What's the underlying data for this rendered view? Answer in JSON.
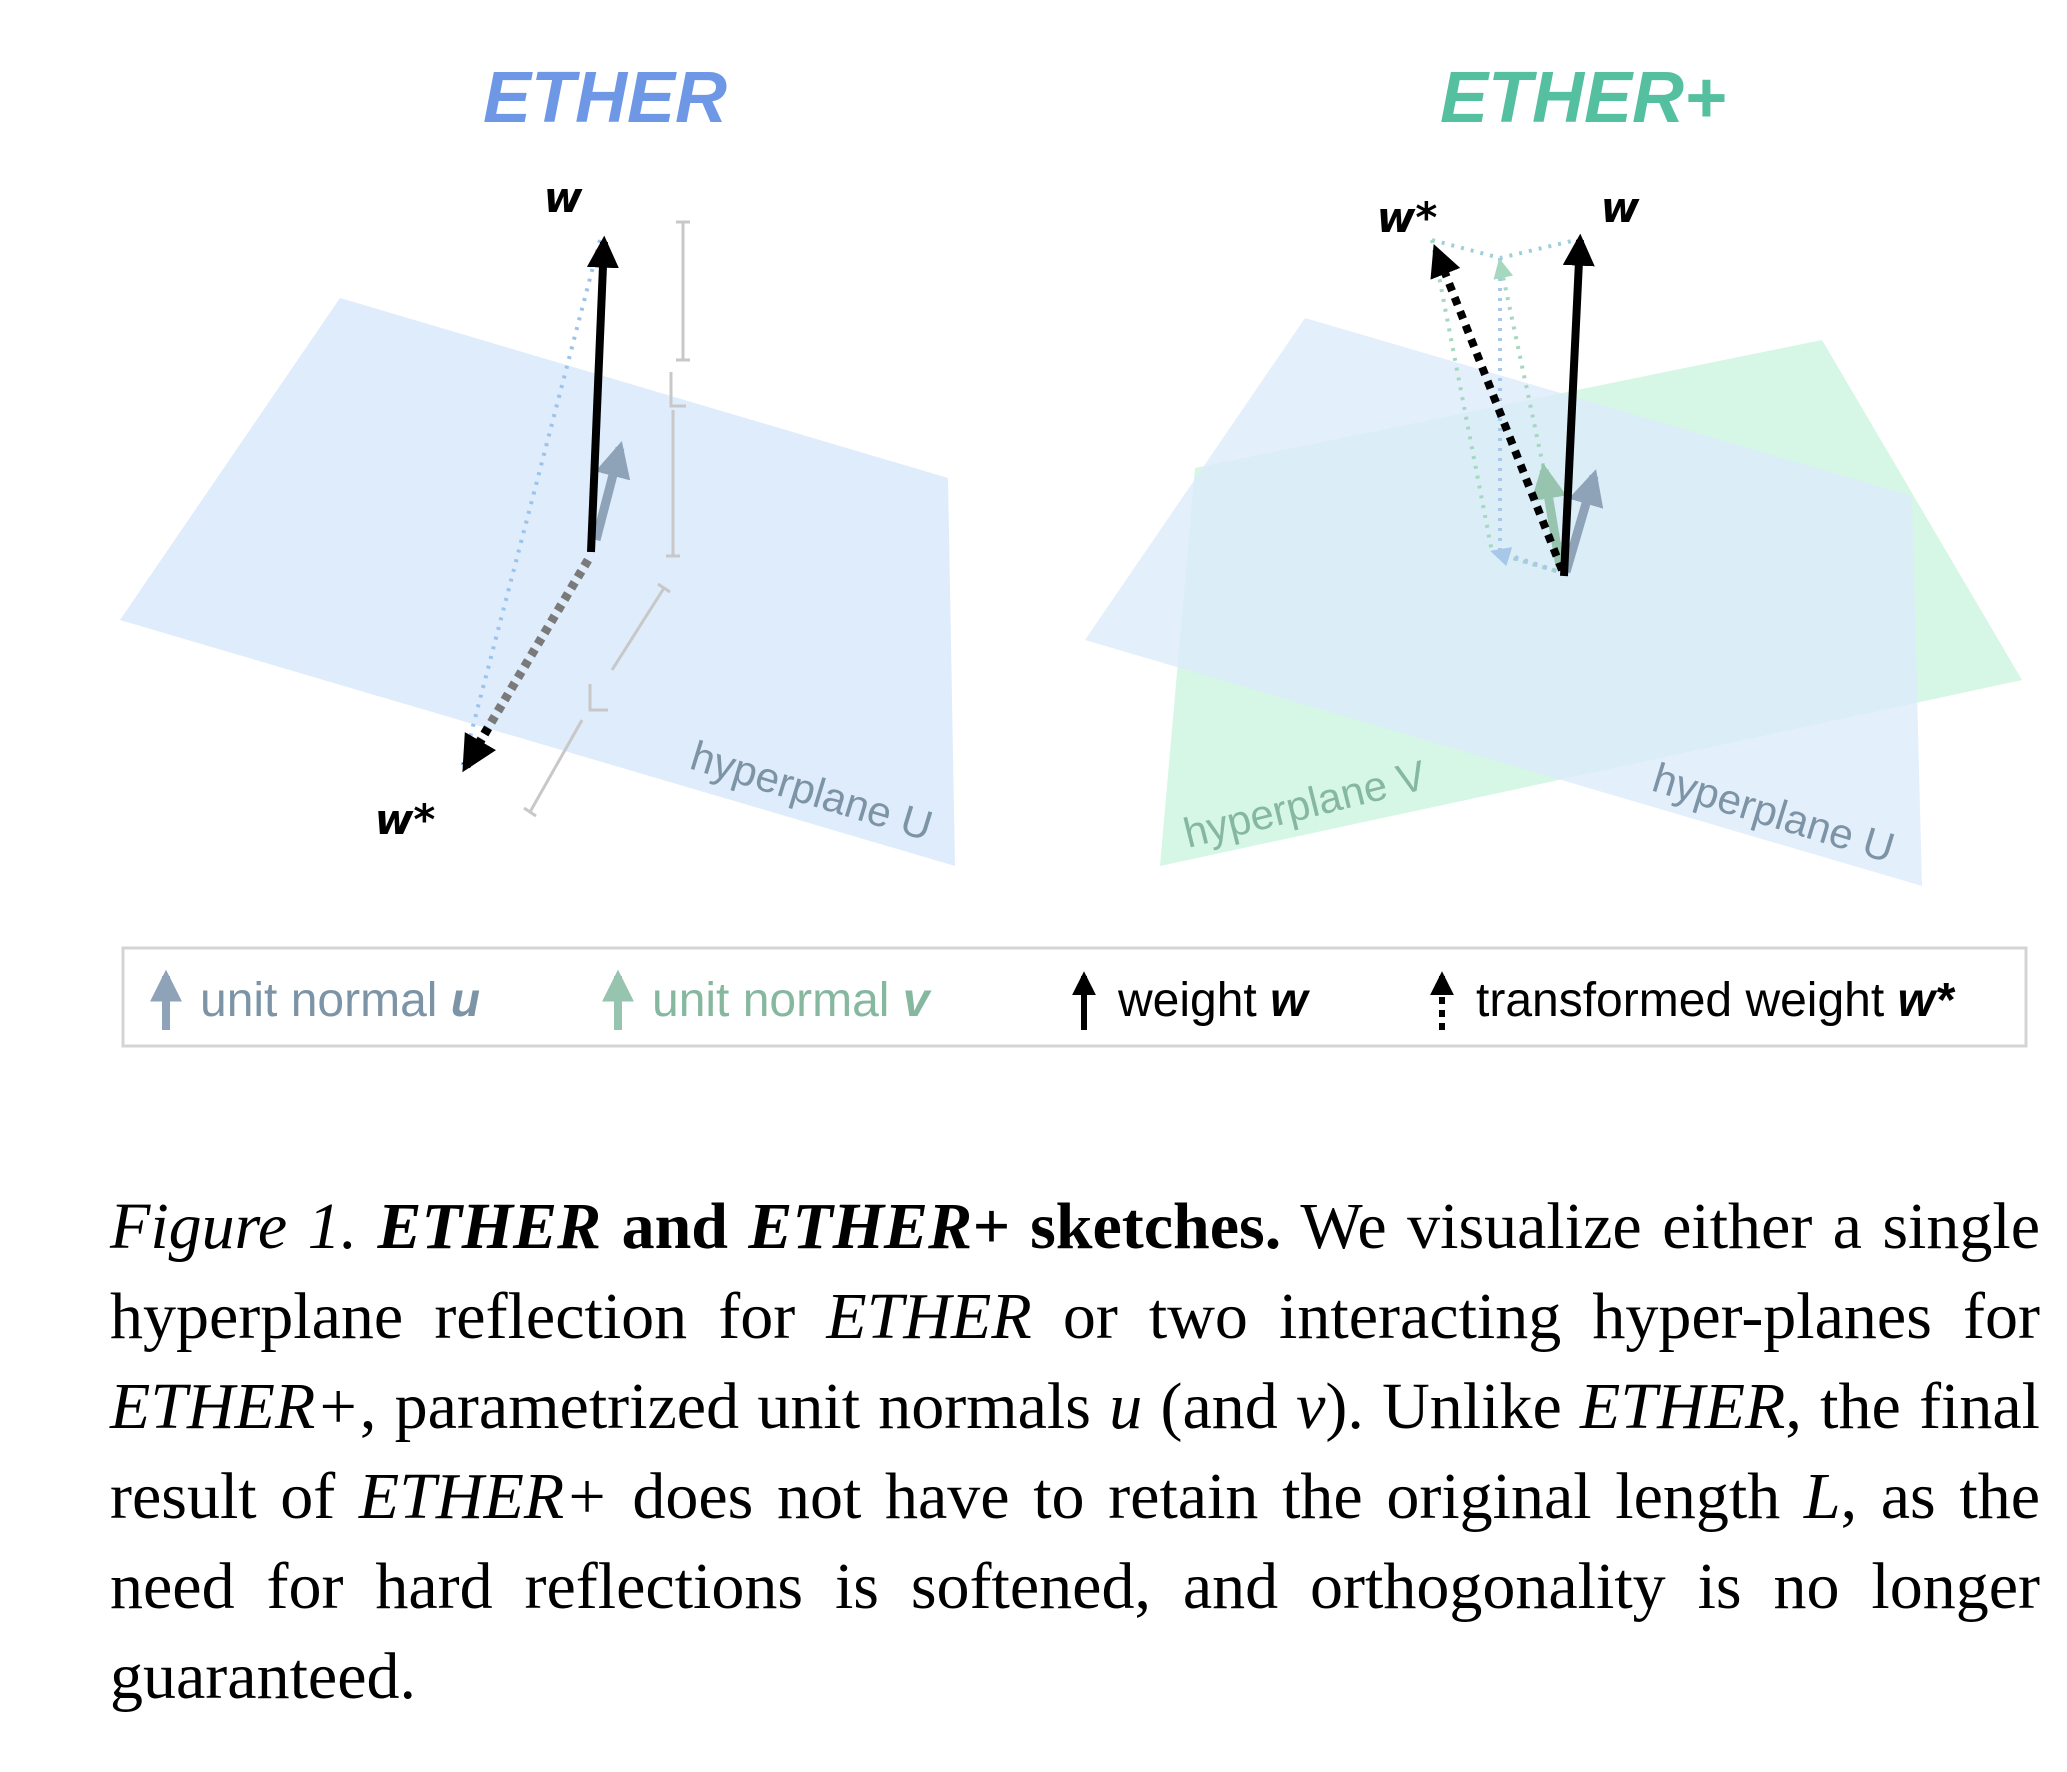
{
  "colors": {
    "ether_title": "#6e98e6",
    "ether_plus_title": "#55c0a0",
    "plane_u": "#dcebfb",
    "plane_v": "#d2f5e3",
    "normal_u": "#8ea3b8",
    "normal_v": "#96c4ae",
    "weight": "#000000",
    "label_u": "#7d94a6",
    "label_v": "#86b8a0"
  },
  "panels": [
    {
      "title": "ETHER",
      "w_label": "w",
      "w_star_label": "w*",
      "hyperplane_label": "hyperplane U",
      "length_marker": "L"
    },
    {
      "title": "ETHER+",
      "w_label": "w",
      "w_star_label": "w*",
      "hyperplane_u_label": "hyperplane U",
      "hyperplane_v_label": "hyperplane V"
    }
  ],
  "legend": {
    "items": [
      {
        "text": "unit normal ",
        "symbol": "u",
        "icon": "arrow-gray-blue-icon"
      },
      {
        "text": "unit normal ",
        "symbol": "v",
        "icon": "arrow-green-icon"
      },
      {
        "text": "weight ",
        "symbol": "w",
        "icon": "arrow-black-icon"
      },
      {
        "text": "transformed weight ",
        "symbol": "w*",
        "icon": "arrow-dotted-black-icon"
      }
    ]
  },
  "caption": {
    "figure_label": "Figure 1.",
    "bold_1": "ETHER",
    "bold_2": " and ",
    "bold_3": "ETHER+",
    "bold_4": " sketches.",
    "t1": " We visualize either a single hyperplane reflection for ",
    "i1": "ETHER",
    "t2": " or two interacting hyper-planes for ",
    "i2": "ETHER+",
    "t3": ", parametrized unit normals ",
    "i3": "u",
    "t4": " (and ",
    "i4": "v",
    "t5": "). Unlike ",
    "i5": "ETHER",
    "t6": ", the final result of ",
    "i6": "ETHER+",
    "t7": " does not have to retain the original length ",
    "i7": "L",
    "t8": ", as the need for hard reflections is softened, and orthogonality is no longer guaranteed."
  }
}
